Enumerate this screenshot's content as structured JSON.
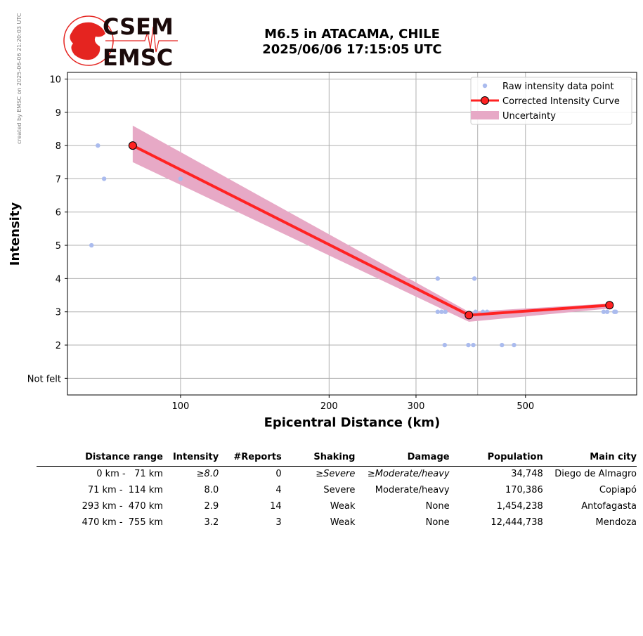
{
  "credit": "created by EMSC on 2025-06-06 21:20:03 UTC",
  "logo": {
    "line1": "CSEM",
    "line2": "EMSC",
    "accent": "#e52420"
  },
  "title": {
    "line1": "M6.5 in ATACAMA, CHILE",
    "line2": "2025/06/06 17:15:05 UTC"
  },
  "colors": {
    "raw": "#aabbee",
    "curve": "#ff2222",
    "uncertainty": "#e7a9c6",
    "grid": "#b0b0b0"
  },
  "chart_data": {
    "type": "scatter",
    "xscale": "log",
    "xlabel": "Epicentral Distance (km)",
    "ylabel": "Intensity",
    "xlim": [
      59,
      840
    ],
    "ylim": [
      0.5,
      10.2
    ],
    "x_ticks": [
      {
        "value": 100,
        "label": "100"
      },
      {
        "value": 200,
        "label": "200"
      },
      {
        "value": 300,
        "label": "300"
      },
      {
        "value": 500,
        "label": "500"
      }
    ],
    "x_minor_gridlines": [
      400
    ],
    "y_ticks": [
      {
        "value": 1,
        "label": "Not felt"
      },
      {
        "value": 2,
        "label": "2"
      },
      {
        "value": 3,
        "label": "3"
      },
      {
        "value": 4,
        "label": "4"
      },
      {
        "value": 5,
        "label": "5"
      },
      {
        "value": 6,
        "label": "6"
      },
      {
        "value": 7,
        "label": "7"
      },
      {
        "value": 8,
        "label": "8"
      },
      {
        "value": 9,
        "label": "9"
      },
      {
        "value": 10,
        "label": "10"
      }
    ],
    "grid": true,
    "legend_position": "top-right",
    "series": [
      {
        "name": "Raw intensity data point",
        "kind": "scatter",
        "points": [
          [
            68,
            8
          ],
          [
            70,
            7
          ],
          [
            66,
            5
          ],
          [
            100,
            7
          ],
          [
            332,
            4
          ],
          [
            332,
            3
          ],
          [
            338,
            3
          ],
          [
            344,
            3
          ],
          [
            343,
            2
          ],
          [
            383,
            2
          ],
          [
            392,
            2
          ],
          [
            394,
            4
          ],
          [
            396,
            3
          ],
          [
            410,
            3
          ],
          [
            418,
            3
          ],
          [
            448,
            2
          ],
          [
            474,
            2
          ],
          [
            720,
            3
          ],
          [
            732,
            3
          ],
          [
            757,
            3
          ],
          [
            762,
            3
          ]
        ]
      },
      {
        "name": "Corrected Intensity Curve",
        "kind": "line",
        "points": [
          [
            80,
            8.0
          ],
          [
            384,
            2.9
          ],
          [
            740,
            3.2
          ]
        ]
      },
      {
        "name": "Uncertainty",
        "kind": "band",
        "upper": [
          [
            80,
            8.6
          ],
          [
            384,
            3.0
          ],
          [
            740,
            3.25
          ]
        ],
        "lower": [
          [
            80,
            7.5
          ],
          [
            384,
            2.7
          ],
          [
            740,
            3.1
          ]
        ]
      }
    ]
  },
  "table": {
    "headers": [
      "Distance range",
      "Intensity",
      "#Reports",
      "Shaking",
      "Damage",
      "Population",
      "Main city"
    ],
    "rows": [
      {
        "cells": [
          "0 km -   71 km",
          "≥8.0",
          "0",
          "≥Severe",
          "≥Moderate/heavy",
          "34,748",
          "Diego de Almagro"
        ],
        "italic": [
          1,
          3,
          4
        ]
      },
      {
        "cells": [
          "71 km -  114 km",
          "8.0",
          "4",
          "Severe",
          "Moderate/heavy",
          "170,386",
          "Copiapó"
        ],
        "italic": []
      },
      {
        "cells": [
          "293 km -  470 km",
          "2.9",
          "14",
          "Weak",
          "None",
          "1,454,238",
          "Antofagasta"
        ],
        "italic": []
      },
      {
        "cells": [
          "470 km -  755 km",
          "3.2",
          "3",
          "Weak",
          "None",
          "12,444,738",
          "Mendoza"
        ],
        "italic": []
      }
    ]
  }
}
